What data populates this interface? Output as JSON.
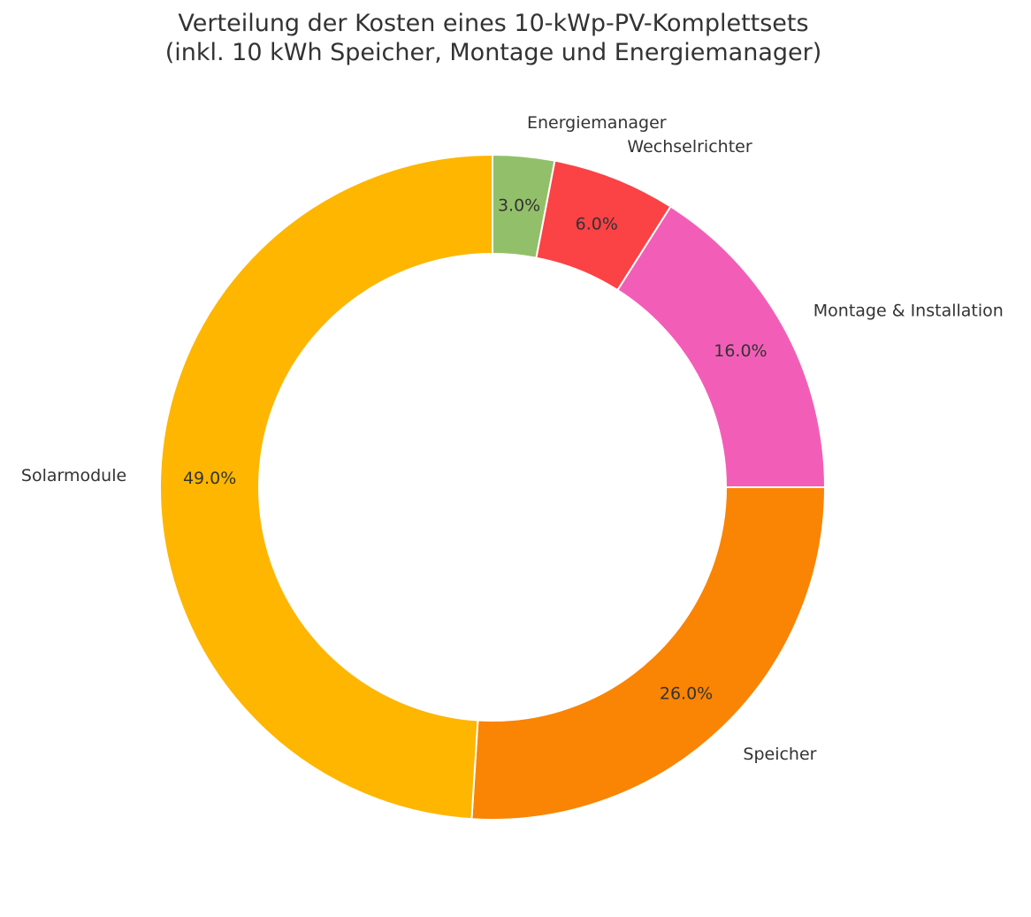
{
  "chart_data": {
    "type": "pie",
    "title": "Verteilung der Kosten eines 10-kWp-PV-Komplettsets",
    "subtitle": "(inkl. 10 kWh Speicher, Montage und Energiemanager)",
    "donut": true,
    "start_angle_deg": 90,
    "direction": "clockwise",
    "slices": [
      {
        "label": "Energiemanager",
        "value": 3.0,
        "pct_label": "3.0%",
        "color": "#92C06A"
      },
      {
        "label": "Wechselrichter",
        "value": 6.0,
        "pct_label": "6.0%",
        "color": "#FB4245"
      },
      {
        "label": "Montage & Installation",
        "value": 16.0,
        "pct_label": "16.0%",
        "color": "#F25EB7"
      },
      {
        "label": "Speicher",
        "value": 26.0,
        "pct_label": "26.0%",
        "color": "#FA8403"
      },
      {
        "label": "Solarmodule",
        "value": 49.0,
        "pct_label": "49.0%",
        "color": "#FEB600"
      }
    ]
  }
}
